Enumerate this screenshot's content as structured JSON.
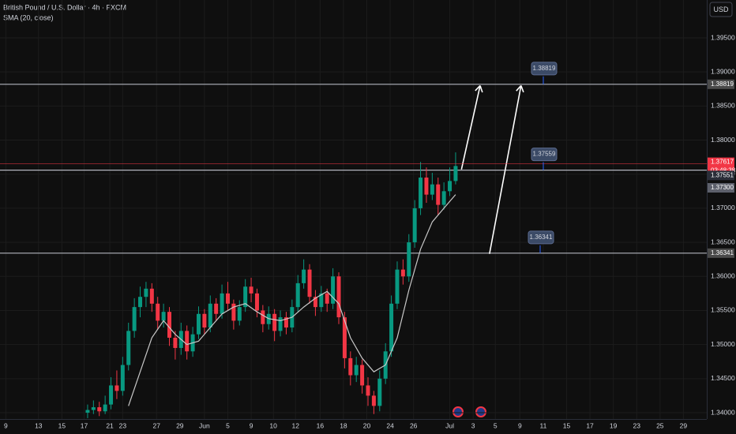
{
  "chart_data": {
    "type": "candlestick",
    "title": "British Pound / U.S. Dollar · 4h · FXCM",
    "indicator_label": "SMA (20, close)",
    "currency": "USD",
    "up_color": "#089981",
    "down_color": "#f23645",
    "xlim": [
      0,
      60.5
    ],
    "xticks": [
      {
        "value": 0.5,
        "label": "9"
      },
      {
        "value": 3.3,
        "label": "13"
      },
      {
        "value": 5.3,
        "label": "15"
      },
      {
        "value": 7.2,
        "label": "17"
      },
      {
        "value": 9.4,
        "label": "21"
      },
      {
        "value": 10.5,
        "label": "23"
      },
      {
        "value": 13.4,
        "label": "27"
      },
      {
        "value": 15.4,
        "label": "29"
      },
      {
        "value": 17.5,
        "label": "Jun"
      },
      {
        "value": 19.5,
        "label": "5"
      },
      {
        "value": 21.5,
        "label": "9"
      },
      {
        "value": 23.4,
        "label": "10"
      },
      {
        "value": 25.3,
        "label": "12"
      },
      {
        "value": 27.4,
        "label": "16"
      },
      {
        "value": 29.4,
        "label": "18"
      },
      {
        "value": 31.4,
        "label": "20"
      },
      {
        "value": 33.4,
        "label": "24"
      },
      {
        "value": 35.4,
        "label": "26"
      },
      {
        "value": 38.5,
        "label": "Jul"
      },
      {
        "value": 40.5,
        "label": "3"
      },
      {
        "value": 42.4,
        "label": "5"
      },
      {
        "value": 44.5,
        "label": "9"
      },
      {
        "value": 46.5,
        "label": "11"
      },
      {
        "value": 48.5,
        "label": "15"
      },
      {
        "value": 50.5,
        "label": "17"
      },
      {
        "value": 52.5,
        "label": "19"
      },
      {
        "value": 54.5,
        "label": "23"
      },
      {
        "value": 56.5,
        "label": "25"
      },
      {
        "value": 58.5,
        "label": "29"
      }
    ],
    "ylim": [
      1.34,
      1.395
    ],
    "yticks": [
      {
        "value": 1.34,
        "label": "1.34000"
      },
      {
        "value": 1.345,
        "label": "1.34500"
      },
      {
        "value": 1.35,
        "label": "1.35000"
      },
      {
        "value": 1.355,
        "label": "1.35500"
      },
      {
        "value": 1.36,
        "label": "1.36000"
      },
      {
        "value": 1.365,
        "label": "1.36500"
      },
      {
        "value": 1.37,
        "label": "1.37000"
      },
      {
        "value": 1.375,
        "label": "1.37500"
      },
      {
        "value": 1.38,
        "label": "1.38000"
      },
      {
        "value": 1.385,
        "label": "1.38500"
      },
      {
        "value": 1.39,
        "label": "1.39000"
      },
      {
        "value": 1.395,
        "label": "1.39500"
      }
    ],
    "grid": true,
    "x": [
      7.5,
      8,
      8.5,
      9,
      9.5,
      10,
      10.5,
      11,
      11.5,
      12,
      12.5,
      13,
      13.5,
      14,
      14.5,
      15,
      15.5,
      16,
      16.5,
      17,
      17.5,
      18,
      18.5,
      19,
      19.5,
      20,
      20.5,
      21,
      21.5,
      22,
      22.5,
      23,
      23.5,
      24,
      24.5,
      25,
      25.5,
      26,
      26.5,
      27,
      27.5,
      28,
      28.5,
      29,
      29.5,
      30,
      30.5,
      31,
      31.5,
      32,
      32.5,
      33,
      33.5,
      34,
      34.5,
      35,
      35.5,
      36,
      36.5,
      37,
      37.5,
      38,
      38.5,
      39
    ],
    "open": [
      1.34,
      1.3404,
      1.3408,
      1.3402,
      1.3412,
      1.344,
      1.3432,
      1.347,
      1.352,
      1.3555,
      1.357,
      1.3582,
      1.356,
      1.3535,
      1.3548,
      1.351,
      1.3495,
      1.352,
      1.349,
      1.3515,
      1.3545,
      1.3525,
      1.356,
      1.3545,
      1.3575,
      1.356,
      1.3535,
      1.3555,
      1.3585,
      1.3575,
      1.355,
      1.353,
      1.3545,
      1.352,
      1.354,
      1.3525,
      1.3555,
      1.359,
      1.361,
      1.357,
      1.3555,
      1.3575,
      1.356,
      1.36,
      1.354,
      1.348,
      1.3455,
      1.347,
      1.344,
      1.3425,
      1.341,
      1.345,
      1.349,
      1.356,
      1.361,
      1.36,
      1.365,
      1.37,
      1.3745,
      1.372,
      1.3735,
      1.3705,
      1.3725,
      1.374
    ],
    "high": [
      1.3412,
      1.3418,
      1.3416,
      1.3425,
      1.3452,
      1.3462,
      1.3482,
      1.3532,
      1.3568,
      1.3585,
      1.3592,
      1.359,
      1.357,
      1.356,
      1.3555,
      1.352,
      1.3532,
      1.3528,
      1.3526,
      1.3556,
      1.3552,
      1.3572,
      1.3568,
      1.3588,
      1.3592,
      1.3566,
      1.3565,
      1.3596,
      1.3598,
      1.3582,
      1.3558,
      1.3556,
      1.3552,
      1.355,
      1.3548,
      1.3566,
      1.3602,
      1.3625,
      1.3618,
      1.358,
      1.3586,
      1.3582,
      1.3612,
      1.3606,
      1.3548,
      1.349,
      1.3482,
      1.3478,
      1.3452,
      1.3432,
      1.3462,
      1.3502,
      1.3572,
      1.3622,
      1.3625,
      1.3662,
      1.3712,
      1.3768,
      1.376,
      1.3752,
      1.3745,
      1.3738,
      1.376,
      1.3782
    ],
    "low": [
      1.3392,
      1.3398,
      1.3395,
      1.3398,
      1.3405,
      1.342,
      1.3425,
      1.3462,
      1.351,
      1.354,
      1.3555,
      1.3548,
      1.3522,
      1.3525,
      1.3498,
      1.3478,
      1.3485,
      1.3478,
      1.3482,
      1.3508,
      1.3515,
      1.3518,
      1.3535,
      1.3538,
      1.355,
      1.3522,
      1.3528,
      1.3548,
      1.3562,
      1.354,
      1.3518,
      1.3522,
      1.3505,
      1.3512,
      1.3515,
      1.3518,
      1.3548,
      1.3582,
      1.356,
      1.3542,
      1.3548,
      1.3548,
      1.3552,
      1.353,
      1.3465,
      1.344,
      1.3445,
      1.3428,
      1.341,
      1.3398,
      1.3402,
      1.3442,
      1.3482,
      1.3552,
      1.3588,
      1.3592,
      1.3642,
      1.369,
      1.3708,
      1.3712,
      1.369,
      1.3698,
      1.3718,
      1.3735
    ],
    "close": [
      1.3404,
      1.3408,
      1.3402,
      1.3412,
      1.344,
      1.3432,
      1.347,
      1.352,
      1.3555,
      1.357,
      1.3582,
      1.356,
      1.3535,
      1.3548,
      1.351,
      1.3495,
      1.352,
      1.349,
      1.3515,
      1.3545,
      1.3525,
      1.356,
      1.3545,
      1.3575,
      1.356,
      1.3535,
      1.3555,
      1.3585,
      1.3575,
      1.355,
      1.353,
      1.3545,
      1.352,
      1.354,
      1.3525,
      1.3555,
      1.359,
      1.361,
      1.357,
      1.3555,
      1.3575,
      1.356,
      1.36,
      1.354,
      1.348,
      1.3455,
      1.347,
      1.344,
      1.3425,
      1.341,
      1.345,
      1.349,
      1.356,
      1.361,
      1.36,
      1.365,
      1.37,
      1.3745,
      1.372,
      1.3735,
      1.3705,
      1.3725,
      1.374,
      1.3762
    ],
    "sma": {
      "color": "#c8c8c8",
      "x": [
        11,
        12,
        13,
        14,
        15,
        16,
        17,
        18,
        19,
        20,
        21,
        22,
        23,
        24,
        25,
        26,
        27,
        28,
        29,
        30,
        31,
        32,
        33,
        34,
        35,
        36,
        37,
        38,
        39
      ],
      "values": [
        1.341,
        1.346,
        1.351,
        1.3535,
        1.3515,
        1.35,
        1.3505,
        1.3525,
        1.3545,
        1.3555,
        1.356,
        1.3548,
        1.3538,
        1.3535,
        1.354,
        1.3555,
        1.3568,
        1.3578,
        1.356,
        1.351,
        1.348,
        1.346,
        1.347,
        1.351,
        1.358,
        1.364,
        1.368,
        1.37,
        1.372
      ]
    },
    "levels": [
      1.38819,
      1.37559,
      1.36341
    ],
    "arrows": [
      {
        "x": [
          39.5,
          41.1
        ],
        "y": [
          1.3757,
          1.388
        ]
      },
      {
        "x": [
          41.9,
          44.6
        ],
        "y": [
          1.3633,
          1.388
        ]
      }
    ],
    "current_price": 1.37617,
    "countdown": "03:48:38",
    "price_tags": [
      1.37551,
      {
        "value": 1.373,
        "label": "1.37300"
      }
    ]
  }
}
